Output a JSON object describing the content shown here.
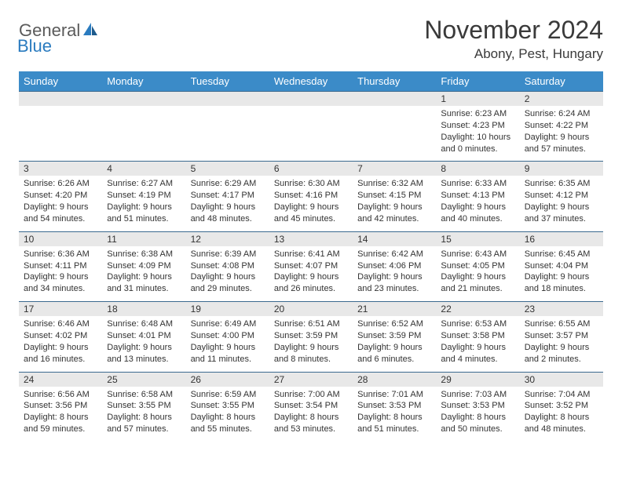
{
  "logo": {
    "general": "General",
    "blue": "Blue"
  },
  "title": "November 2024",
  "location": "Abony, Pest, Hungary",
  "day_headers": [
    "Sunday",
    "Monday",
    "Tuesday",
    "Wednesday",
    "Thursday",
    "Friday",
    "Saturday"
  ],
  "colors": {
    "header_bg": "#3b8bc8",
    "header_text": "#ffffff",
    "daynum_bg": "#e8e8e8",
    "row_border": "#3b6a8f",
    "logo_gray": "#5a5a5a",
    "logo_blue": "#2a7bbf",
    "text": "#333333"
  },
  "weeks": [
    [
      {
        "blank": true
      },
      {
        "blank": true
      },
      {
        "blank": true
      },
      {
        "blank": true
      },
      {
        "blank": true
      },
      {
        "num": "1",
        "sunrise": "Sunrise: 6:23 AM",
        "sunset": "Sunset: 4:23 PM",
        "day1": "Daylight: 10 hours",
        "day2": "and 0 minutes."
      },
      {
        "num": "2",
        "sunrise": "Sunrise: 6:24 AM",
        "sunset": "Sunset: 4:22 PM",
        "day1": "Daylight: 9 hours",
        "day2": "and 57 minutes."
      }
    ],
    [
      {
        "num": "3",
        "sunrise": "Sunrise: 6:26 AM",
        "sunset": "Sunset: 4:20 PM",
        "day1": "Daylight: 9 hours",
        "day2": "and 54 minutes."
      },
      {
        "num": "4",
        "sunrise": "Sunrise: 6:27 AM",
        "sunset": "Sunset: 4:19 PM",
        "day1": "Daylight: 9 hours",
        "day2": "and 51 minutes."
      },
      {
        "num": "5",
        "sunrise": "Sunrise: 6:29 AM",
        "sunset": "Sunset: 4:17 PM",
        "day1": "Daylight: 9 hours",
        "day2": "and 48 minutes."
      },
      {
        "num": "6",
        "sunrise": "Sunrise: 6:30 AM",
        "sunset": "Sunset: 4:16 PM",
        "day1": "Daylight: 9 hours",
        "day2": "and 45 minutes."
      },
      {
        "num": "7",
        "sunrise": "Sunrise: 6:32 AM",
        "sunset": "Sunset: 4:15 PM",
        "day1": "Daylight: 9 hours",
        "day2": "and 42 minutes."
      },
      {
        "num": "8",
        "sunrise": "Sunrise: 6:33 AM",
        "sunset": "Sunset: 4:13 PM",
        "day1": "Daylight: 9 hours",
        "day2": "and 40 minutes."
      },
      {
        "num": "9",
        "sunrise": "Sunrise: 6:35 AM",
        "sunset": "Sunset: 4:12 PM",
        "day1": "Daylight: 9 hours",
        "day2": "and 37 minutes."
      }
    ],
    [
      {
        "num": "10",
        "sunrise": "Sunrise: 6:36 AM",
        "sunset": "Sunset: 4:11 PM",
        "day1": "Daylight: 9 hours",
        "day2": "and 34 minutes."
      },
      {
        "num": "11",
        "sunrise": "Sunrise: 6:38 AM",
        "sunset": "Sunset: 4:09 PM",
        "day1": "Daylight: 9 hours",
        "day2": "and 31 minutes."
      },
      {
        "num": "12",
        "sunrise": "Sunrise: 6:39 AM",
        "sunset": "Sunset: 4:08 PM",
        "day1": "Daylight: 9 hours",
        "day2": "and 29 minutes."
      },
      {
        "num": "13",
        "sunrise": "Sunrise: 6:41 AM",
        "sunset": "Sunset: 4:07 PM",
        "day1": "Daylight: 9 hours",
        "day2": "and 26 minutes."
      },
      {
        "num": "14",
        "sunrise": "Sunrise: 6:42 AM",
        "sunset": "Sunset: 4:06 PM",
        "day1": "Daylight: 9 hours",
        "day2": "and 23 minutes."
      },
      {
        "num": "15",
        "sunrise": "Sunrise: 6:43 AM",
        "sunset": "Sunset: 4:05 PM",
        "day1": "Daylight: 9 hours",
        "day2": "and 21 minutes."
      },
      {
        "num": "16",
        "sunrise": "Sunrise: 6:45 AM",
        "sunset": "Sunset: 4:04 PM",
        "day1": "Daylight: 9 hours",
        "day2": "and 18 minutes."
      }
    ],
    [
      {
        "num": "17",
        "sunrise": "Sunrise: 6:46 AM",
        "sunset": "Sunset: 4:02 PM",
        "day1": "Daylight: 9 hours",
        "day2": "and 16 minutes."
      },
      {
        "num": "18",
        "sunrise": "Sunrise: 6:48 AM",
        "sunset": "Sunset: 4:01 PM",
        "day1": "Daylight: 9 hours",
        "day2": "and 13 minutes."
      },
      {
        "num": "19",
        "sunrise": "Sunrise: 6:49 AM",
        "sunset": "Sunset: 4:00 PM",
        "day1": "Daylight: 9 hours",
        "day2": "and 11 minutes."
      },
      {
        "num": "20",
        "sunrise": "Sunrise: 6:51 AM",
        "sunset": "Sunset: 3:59 PM",
        "day1": "Daylight: 9 hours",
        "day2": "and 8 minutes."
      },
      {
        "num": "21",
        "sunrise": "Sunrise: 6:52 AM",
        "sunset": "Sunset: 3:59 PM",
        "day1": "Daylight: 9 hours",
        "day2": "and 6 minutes."
      },
      {
        "num": "22",
        "sunrise": "Sunrise: 6:53 AM",
        "sunset": "Sunset: 3:58 PM",
        "day1": "Daylight: 9 hours",
        "day2": "and 4 minutes."
      },
      {
        "num": "23",
        "sunrise": "Sunrise: 6:55 AM",
        "sunset": "Sunset: 3:57 PM",
        "day1": "Daylight: 9 hours",
        "day2": "and 2 minutes."
      }
    ],
    [
      {
        "num": "24",
        "sunrise": "Sunrise: 6:56 AM",
        "sunset": "Sunset: 3:56 PM",
        "day1": "Daylight: 8 hours",
        "day2": "and 59 minutes."
      },
      {
        "num": "25",
        "sunrise": "Sunrise: 6:58 AM",
        "sunset": "Sunset: 3:55 PM",
        "day1": "Daylight: 8 hours",
        "day2": "and 57 minutes."
      },
      {
        "num": "26",
        "sunrise": "Sunrise: 6:59 AM",
        "sunset": "Sunset: 3:55 PM",
        "day1": "Daylight: 8 hours",
        "day2": "and 55 minutes."
      },
      {
        "num": "27",
        "sunrise": "Sunrise: 7:00 AM",
        "sunset": "Sunset: 3:54 PM",
        "day1": "Daylight: 8 hours",
        "day2": "and 53 minutes."
      },
      {
        "num": "28",
        "sunrise": "Sunrise: 7:01 AM",
        "sunset": "Sunset: 3:53 PM",
        "day1": "Daylight: 8 hours",
        "day2": "and 51 minutes."
      },
      {
        "num": "29",
        "sunrise": "Sunrise: 7:03 AM",
        "sunset": "Sunset: 3:53 PM",
        "day1": "Daylight: 8 hours",
        "day2": "and 50 minutes."
      },
      {
        "num": "30",
        "sunrise": "Sunrise: 7:04 AM",
        "sunset": "Sunset: 3:52 PM",
        "day1": "Daylight: 8 hours",
        "day2": "and 48 minutes."
      }
    ]
  ]
}
